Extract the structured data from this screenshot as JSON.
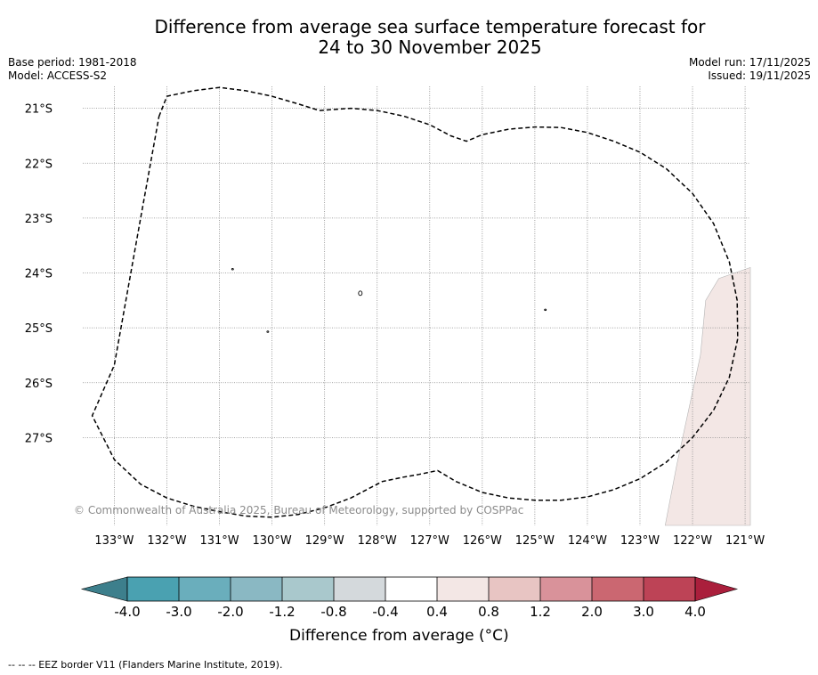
{
  "title": {
    "line1": "Difference from average sea surface temperature forecast for",
    "line2": "24 to 30 November 2025"
  },
  "meta": {
    "base_period": "Base period: 1981-2018",
    "model": "Model: ACCESS-S2",
    "model_run": "Model run: 17/11/2025",
    "issued": "Issued: 19/11/2025"
  },
  "copyright": "© Commonwealth of Australia 2025, Bureau of Meteorology, supported by COSPPac",
  "footer": "--  --  -- EEZ border V11 (Flanders Marine Institute, 2019).",
  "colorbar": {
    "label": "Difference from average (°C)",
    "ticks": [
      "-4.0",
      "-3.0",
      "-2.0",
      "-1.2",
      "-0.8",
      "-0.4",
      "0.4",
      "0.8",
      "1.2",
      "2.0",
      "3.0",
      "4.0"
    ],
    "colors": [
      "#4aa1b1",
      "#6aaebc",
      "#8ab8c3",
      "#a9c8cc",
      "#d4d9dc",
      "#ffffff",
      "#f3e7e5",
      "#e8c5c3",
      "#d9929a",
      "#cb6771",
      "#bd4356"
    ],
    "under_color": "#3d7f8c",
    "over_color": "#aa1f3c"
  },
  "chart_data": {
    "type": "map",
    "title": "Difference from average sea surface temperature forecast for 24 to 30 November 2025",
    "xlim": [
      -133.6,
      -120.9
    ],
    "ylim": [
      -28.6,
      -20.6
    ],
    "x_ticks": [
      {
        "value": -133,
        "label": "133°W"
      },
      {
        "value": -132,
        "label": "132°W"
      },
      {
        "value": -131,
        "label": "131°W"
      },
      {
        "value": -130,
        "label": "130°W"
      },
      {
        "value": -129,
        "label": "129°W"
      },
      {
        "value": -128,
        "label": "128°W"
      },
      {
        "value": -127,
        "label": "127°W"
      },
      {
        "value": -126,
        "label": "126°W"
      },
      {
        "value": -125,
        "label": "125°W"
      },
      {
        "value": -124,
        "label": "124°W"
      },
      {
        "value": -123,
        "label": "123°W"
      },
      {
        "value": -122,
        "label": "122°W"
      },
      {
        "value": -121,
        "label": "121°W"
      }
    ],
    "y_ticks": [
      {
        "value": -21,
        "label": "21°S"
      },
      {
        "value": -22,
        "label": "22°S"
      },
      {
        "value": -23,
        "label": "23°S"
      },
      {
        "value": -24,
        "label": "24°S"
      },
      {
        "value": -25,
        "label": "25°S"
      },
      {
        "value": -26,
        "label": "26°S"
      },
      {
        "value": -27,
        "label": "27°S"
      }
    ],
    "grid": true,
    "anomaly_region": {
      "range_label": "0.4 to 0.8",
      "color": "#f3e7e5",
      "polygon": [
        [
          -122.52,
          -28.6
        ],
        [
          -122.3,
          -27.5
        ],
        [
          -121.85,
          -25.5
        ],
        [
          -121.75,
          -24.5
        ],
        [
          -121.5,
          -24.1
        ],
        [
          -120.9,
          -23.9
        ],
        [
          -120.9,
          -28.6
        ]
      ]
    },
    "eez_border": [
      [
        -132.15,
        -21.15
      ],
      [
        -132.0,
        -20.78
      ],
      [
        -131.5,
        -20.68
      ],
      [
        -131.0,
        -20.62
      ],
      [
        -130.5,
        -20.68
      ],
      [
        -130.0,
        -20.78
      ],
      [
        -129.5,
        -20.92
      ],
      [
        -129.1,
        -21.04
      ],
      [
        -128.5,
        -21.0
      ],
      [
        -128.0,
        -21.04
      ],
      [
        -127.5,
        -21.14
      ],
      [
        -127.0,
        -21.3
      ],
      [
        -126.6,
        -21.5
      ],
      [
        -126.3,
        -21.6
      ],
      [
        -126.0,
        -21.48
      ],
      [
        -125.5,
        -21.38
      ],
      [
        -125.0,
        -21.34
      ],
      [
        -124.5,
        -21.35
      ],
      [
        -124.0,
        -21.44
      ],
      [
        -123.5,
        -21.6
      ],
      [
        -123.0,
        -21.8
      ],
      [
        -122.5,
        -22.1
      ],
      [
        -122.0,
        -22.55
      ],
      [
        -121.6,
        -23.1
      ],
      [
        -121.3,
        -23.8
      ],
      [
        -121.15,
        -24.5
      ],
      [
        -121.14,
        -25.2
      ],
      [
        -121.3,
        -25.9
      ],
      [
        -121.6,
        -26.5
      ],
      [
        -122.0,
        -27.0
      ],
      [
        -122.5,
        -27.45
      ],
      [
        -123.0,
        -27.75
      ],
      [
        -123.5,
        -27.95
      ],
      [
        -124.0,
        -28.08
      ],
      [
        -124.5,
        -28.14
      ],
      [
        -125.0,
        -28.14
      ],
      [
        -125.5,
        -28.1
      ],
      [
        -126.0,
        -28.0
      ],
      [
        -126.5,
        -27.8
      ],
      [
        -126.85,
        -27.6
      ],
      [
        -127.2,
        -27.67
      ],
      [
        -127.5,
        -27.72
      ],
      [
        -127.9,
        -27.8
      ],
      [
        -128.2,
        -27.95
      ],
      [
        -128.5,
        -28.1
      ],
      [
        -129.0,
        -28.28
      ],
      [
        -129.5,
        -28.4
      ],
      [
        -130.0,
        -28.45
      ],
      [
        -130.5,
        -28.43
      ],
      [
        -131.0,
        -28.35
      ],
      [
        -131.5,
        -28.25
      ],
      [
        -132.0,
        -28.1
      ],
      [
        -132.5,
        -27.85
      ],
      [
        -133.0,
        -27.4
      ],
      [
        -133.42,
        -26.6
      ],
      [
        -133.0,
        -25.68
      ],
      [
        -132.5,
        -23.0
      ],
      [
        -132.15,
        -21.15
      ]
    ],
    "islands": [
      [
        -130.75,
        -23.93
      ],
      [
        -128.32,
        -24.37
      ],
      [
        -124.8,
        -24.67
      ],
      [
        -130.08,
        -25.07
      ]
    ]
  }
}
